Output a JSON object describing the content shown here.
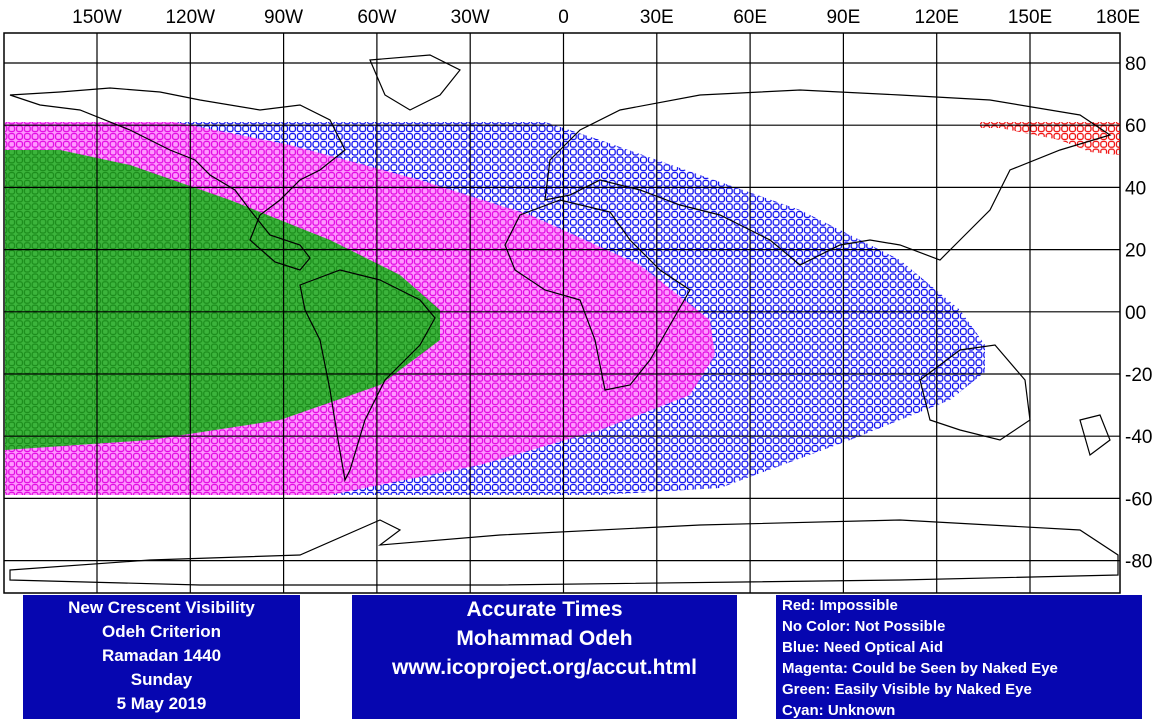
{
  "map": {
    "longitude_labels": [
      "150W",
      "120W",
      "90W",
      "60W",
      "30W",
      "0",
      "30E",
      "60E",
      "90E",
      "120E",
      "150E",
      "180E"
    ],
    "latitude_labels": [
      "80",
      "60",
      "40",
      "20",
      "00",
      "-20",
      "-40",
      "-60",
      "-80"
    ],
    "info_box": [
      "New Crescent Visibility",
      "Odeh Criterion",
      "Ramadan 1440",
      "Sunday",
      "5 May 2019"
    ],
    "credit_box": [
      "Accurate Times",
      "Mohammad Odeh",
      "www.icoproject.org/accut.html"
    ],
    "legend": [
      "Red: Impossible",
      "No Color: Not Possible",
      "Blue: Need Optical Aid",
      "Magenta: Could be Seen by Naked Eye",
      "Green: Easily Visible by Naked Eye",
      "Cyan: Unknown"
    ]
  }
}
